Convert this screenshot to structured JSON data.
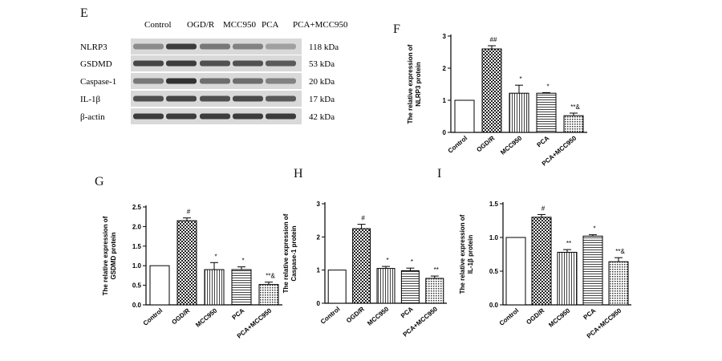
{
  "panels": {
    "E": "E",
    "F": "F",
    "G": "G",
    "H": "H",
    "I": "I"
  },
  "western_blot": {
    "lanes": [
      "Control",
      "OGD/R",
      "MCC950",
      "PCA",
      "PCA+MCC950"
    ],
    "proteins": [
      {
        "name": "NLRP3",
        "kda": "118 kDa",
        "intensity": [
          0.45,
          0.85,
          0.55,
          0.5,
          0.35
        ]
      },
      {
        "name": "GSDMD",
        "kda": "53 kDa",
        "intensity": [
          0.8,
          0.85,
          0.75,
          0.75,
          0.7
        ]
      },
      {
        "name": "Caspase-1",
        "kda": "20 kDa",
        "intensity": [
          0.55,
          0.9,
          0.6,
          0.6,
          0.5
        ]
      },
      {
        "name": "IL-1β",
        "kda": "17 kDa",
        "intensity": [
          0.75,
          0.8,
          0.75,
          0.78,
          0.7
        ]
      },
      {
        "name": "β-actin",
        "kda": "42 kDa",
        "intensity": [
          0.85,
          0.85,
          0.85,
          0.85,
          0.85
        ]
      }
    ]
  },
  "chart_data": [
    {
      "id": "F",
      "type": "bar",
      "categories": [
        "Control",
        "OGD/R",
        "MCC950",
        "PCA",
        "PCA+MCC950"
      ],
      "values": [
        1.0,
        2.6,
        1.22,
        1.22,
        0.52
      ],
      "errors": [
        0,
        0.1,
        0.25,
        0.02,
        0.08
      ],
      "annotations": [
        "",
        "##",
        "*",
        "*",
        "**&"
      ],
      "ylabel": "The relative expression of NLRP3 protein",
      "ylabel_lines": [
        "The relative expression of",
        "NLRP3 protein"
      ],
      "ylim": [
        0,
        3
      ],
      "yticks": [
        0,
        1,
        2,
        3
      ],
      "tick_labels": [
        "0",
        "1",
        "2",
        "3"
      ],
      "tick_style": "sans",
      "patterns": [
        "white",
        "checker",
        "vlines",
        "hlines",
        "dots"
      ]
    },
    {
      "id": "G",
      "type": "bar",
      "categories": [
        "Control",
        "OGD/R",
        "MCC950",
        "PCA",
        "PCA+MCC950"
      ],
      "values": [
        1.0,
        2.15,
        0.9,
        0.9,
        0.52
      ],
      "errors": [
        0,
        0.07,
        0.18,
        0.07,
        0.06
      ],
      "annotations": [
        "",
        "#",
        "*",
        "*",
        "**&"
      ],
      "ylabel": "The relative expression of GSDMD protein",
      "ylabel_lines": [
        "The relative expression of",
        "GSDMD protein"
      ],
      "ylim": [
        0,
        2.5
      ],
      "yticks": [
        0,
        0.5,
        1.0,
        1.5,
        2.0,
        2.5
      ],
      "tick_labels": [
        "0.0",
        "0.5",
        "1.0",
        "1.5",
        "2.0",
        "2.5"
      ],
      "tick_style": "sans",
      "patterns": [
        "white",
        "checker",
        "vlines",
        "hlines",
        "dots"
      ]
    },
    {
      "id": "H",
      "type": "bar",
      "categories": [
        "Control",
        "OGD/R",
        "MCC950",
        "PCA",
        "PCA+MCC950"
      ],
      "values": [
        1.0,
        2.25,
        1.05,
        0.98,
        0.75
      ],
      "errors": [
        0,
        0.13,
        0.06,
        0.08,
        0.07
      ],
      "annotations": [
        "",
        "#",
        "*",
        "*",
        "**"
      ],
      "ylabel": "The relative expression of Caspase-1 protein",
      "ylabel_lines": [
        "The relative expression of",
        "Caspase-1 protein"
      ],
      "ylim": [
        0,
        3
      ],
      "yticks": [
        0,
        1,
        2,
        3
      ],
      "tick_labels": [
        "0",
        "1",
        "2",
        "3"
      ],
      "tick_style": "serif",
      "patterns": [
        "white",
        "checker",
        "vlines",
        "hlines",
        "dots"
      ]
    },
    {
      "id": "I",
      "type": "bar",
      "categories": [
        "Control",
        "OGD/R",
        "MCC950",
        "PCA",
        "PCA+MCC950"
      ],
      "values": [
        1.0,
        1.3,
        0.78,
        1.02,
        0.64
      ],
      "errors": [
        0,
        0.04,
        0.04,
        0.02,
        0.06
      ],
      "annotations": [
        "",
        "#",
        "**",
        "*",
        "**&"
      ],
      "ylabel": "The relative expression of IL-1β protein",
      "ylabel_lines": [
        "The relative expression of",
        "IL-1β protein"
      ],
      "ylim": [
        0,
        1.5
      ],
      "yticks": [
        0,
        0.5,
        1.0,
        1.5
      ],
      "tick_labels": [
        "0.0",
        "0.5",
        "1.0",
        "1.5"
      ],
      "tick_style": "sans",
      "patterns": [
        "white",
        "checker",
        "vlines",
        "hlines",
        "dots"
      ]
    }
  ]
}
